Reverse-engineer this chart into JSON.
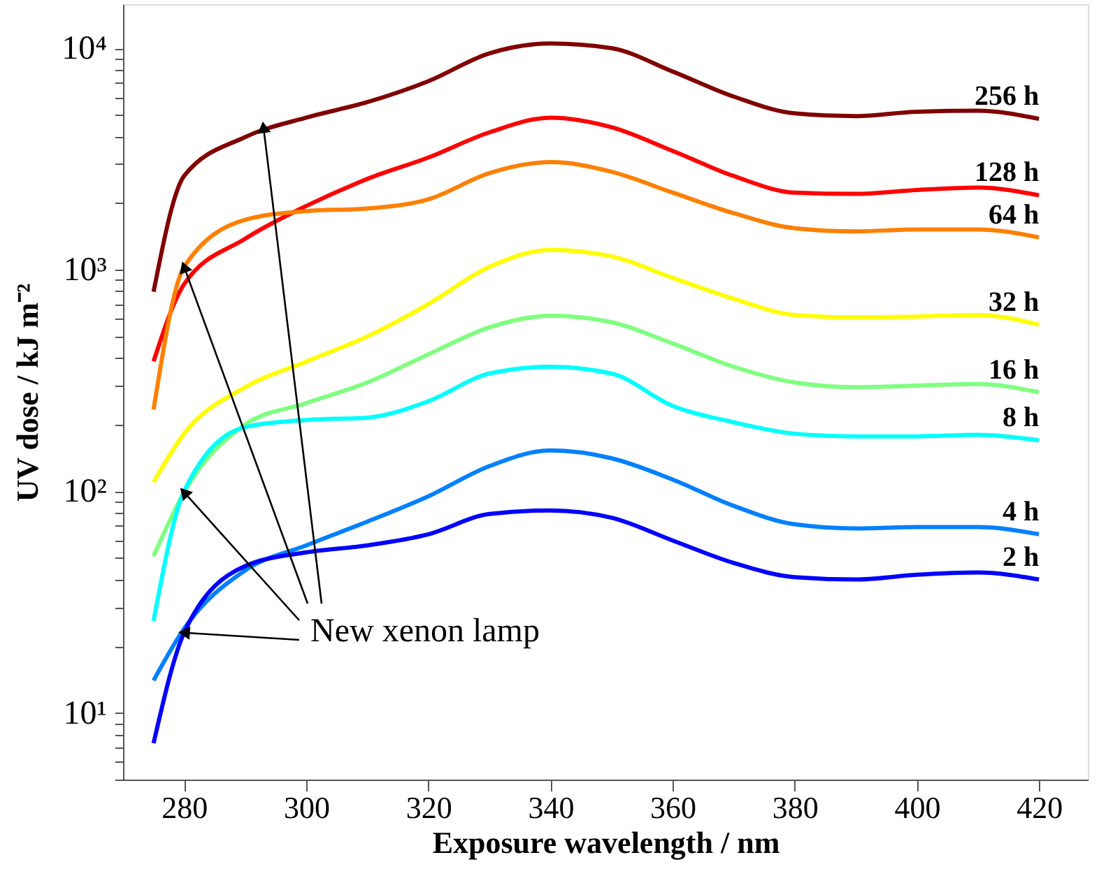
{
  "chart_data": {
    "type": "line",
    "xlabel": "Exposure wavelength / nm",
    "ylabel": "UV dose / kJ m⁻²",
    "x": [
      275,
      280,
      290,
      300,
      310,
      320,
      330,
      340,
      350,
      360,
      370,
      380,
      390,
      400,
      410,
      420
    ],
    "xlim": [
      270,
      428
    ],
    "xticks": [
      280,
      300,
      320,
      340,
      360,
      380,
      400,
      420
    ],
    "ylim": [
      5,
      15800
    ],
    "log": true,
    "grid": false,
    "marker": "none",
    "line_style": "solid",
    "yticks": [
      {
        "value": 5,
        "label": null
      },
      {
        "value": 6,
        "label": null
      },
      {
        "value": 7,
        "label": null
      },
      {
        "value": 8,
        "label": null
      },
      {
        "value": 9,
        "label": null
      },
      {
        "value": 10,
        "label": "10¹"
      },
      {
        "value": 20,
        "label": null
      },
      {
        "value": 30,
        "label": null
      },
      {
        "value": 40,
        "label": null
      },
      {
        "value": 50,
        "label": null
      },
      {
        "value": 60,
        "label": null
      },
      {
        "value": 70,
        "label": null
      },
      {
        "value": 80,
        "label": null
      },
      {
        "value": 90,
        "label": null
      },
      {
        "value": 100,
        "label": "10²"
      },
      {
        "value": 200,
        "label": null
      },
      {
        "value": 300,
        "label": null
      },
      {
        "value": 400,
        "label": null
      },
      {
        "value": 500,
        "label": null
      },
      {
        "value": 600,
        "label": null
      },
      {
        "value": 700,
        "label": null
      },
      {
        "value": 800,
        "label": null
      },
      {
        "value": 900,
        "label": null
      },
      {
        "value": 1000,
        "label": "10³"
      },
      {
        "value": 2000,
        "label": null
      },
      {
        "value": 3000,
        "label": null
      },
      {
        "value": 4000,
        "label": null
      },
      {
        "value": 5000,
        "label": null
      },
      {
        "value": 6000,
        "label": null
      },
      {
        "value": 7000,
        "label": null
      },
      {
        "value": 8000,
        "label": null
      },
      {
        "value": 9000,
        "label": null
      },
      {
        "value": 10000,
        "label": "10⁴"
      }
    ],
    "series": [
      {
        "name": "256 h",
        "color": "#800000",
        "values": [
          796,
          2650,
          3970,
          4860,
          5710,
          7100,
          9480,
          10500,
          10000,
          7850,
          6050,
          5080,
          4940,
          5170,
          5220,
          4800
        ]
      },
      {
        "name": "128 h",
        "color": "#ff0000",
        "values": [
          386,
          860,
          1380,
          1940,
          2570,
          3210,
          4170,
          4860,
          4400,
          3440,
          2650,
          2230,
          2200,
          2290,
          2350,
          2170
        ]
      },
      {
        "name": "64 h",
        "color": "#ff8000",
        "values": [
          234,
          1030,
          1680,
          1840,
          1890,
          2080,
          2730,
          3060,
          2770,
          2230,
          1800,
          1540,
          1490,
          1520,
          1520,
          1400
        ]
      },
      {
        "name": "32 h",
        "color": "#ffff00",
        "values": [
          110,
          182,
          295,
          385,
          500,
          700,
          1030,
          1230,
          1150,
          920,
          740,
          625,
          610,
          615,
          625,
          565
        ]
      },
      {
        "name": "16 h",
        "color": "#80ff80",
        "values": [
          51,
          99,
          200,
          250,
          310,
          415,
          550,
          620,
          580,
          465,
          365,
          310,
          295,
          300,
          305,
          280
        ]
      },
      {
        "name": "8 h",
        "color": "#00ffff",
        "values": [
          26,
          100,
          195,
          210,
          215,
          255,
          340,
          365,
          340,
          243,
          205,
          182,
          177,
          177,
          180,
          170
        ]
      },
      {
        "name": "4 h",
        "color": "#0080ff",
        "values": [
          14,
          24,
          44,
          57,
          73,
          95,
          130,
          153,
          141,
          113,
          86,
          71,
          68,
          69,
          69,
          64
        ]
      },
      {
        "name": "2 h",
        "color": "#0000ff",
        "values": [
          7.3,
          23,
          46,
          53,
          57,
          64,
          79,
          82,
          76,
          60,
          47.5,
          41,
          40,
          42,
          43,
          40
        ]
      }
    ],
    "annotations": [
      {
        "text": "New xenon lamp",
        "x": 293,
        "y": 4400
      }
    ]
  }
}
